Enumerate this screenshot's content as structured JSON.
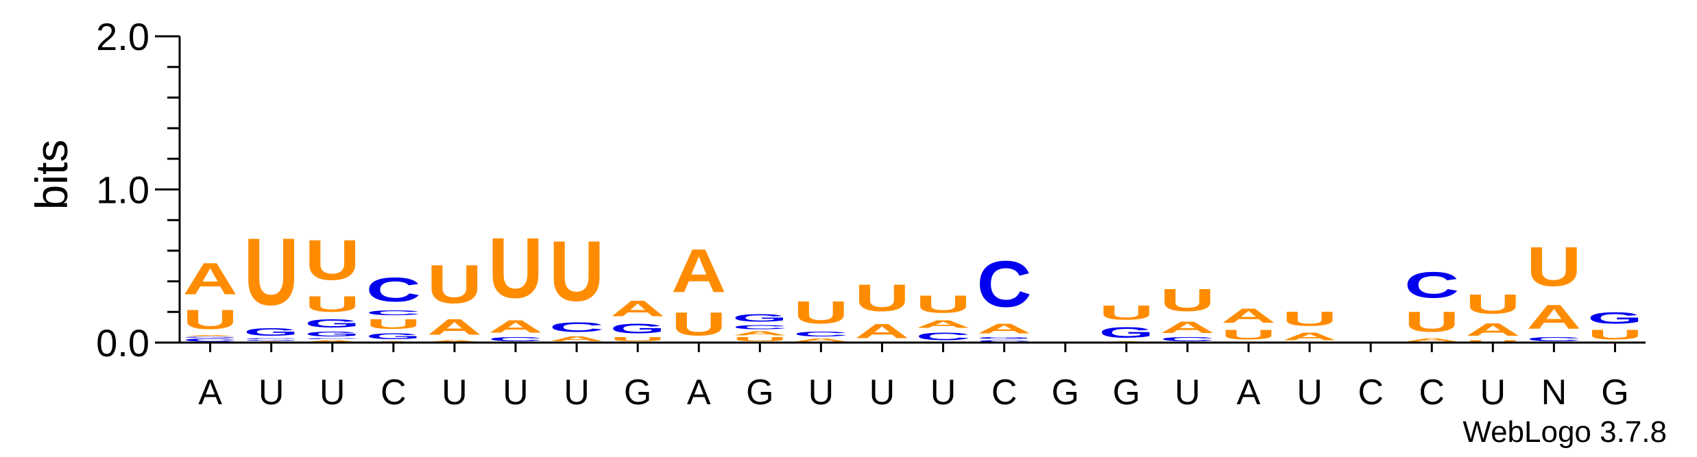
{
  "chart_data": {
    "type": "sequence-logo",
    "ylabel": "bits",
    "ylim": [
      0,
      2.0
    ],
    "yticks": [
      "0.0",
      "1.0",
      "2.0"
    ],
    "consensus": [
      "A",
      "U",
      "U",
      "C",
      "U",
      "U",
      "U",
      "G",
      "A",
      "G",
      "U",
      "U",
      "U",
      "C",
      "G",
      "G",
      "U",
      "A",
      "U",
      "C",
      "C",
      "U",
      "N",
      "G"
    ],
    "colors": {
      "A": "#ff8c00",
      "U": "#ff8c00",
      "C": "#0000ee",
      "G": "#0000ee"
    },
    "positions": [
      [
        [
          "C",
          0.03
        ],
        [
          "G",
          0.01
        ],
        [
          "A",
          0.01
        ],
        [
          "U",
          0.2
        ],
        [
          "A",
          0.33
        ]
      ],
      [
        [
          "A",
          0.01
        ],
        [
          "G",
          0.01
        ],
        [
          "C",
          0.01
        ],
        [
          "G",
          0.08
        ],
        [
          "U",
          0.7
        ]
      ],
      [
        [
          "A",
          0.02
        ],
        [
          "C",
          0.01
        ],
        [
          "G",
          0.05
        ],
        [
          "G",
          0.09
        ],
        [
          "U",
          0.16
        ],
        [
          "U",
          0.42
        ]
      ],
      [
        [
          "A",
          0.01
        ],
        [
          "G",
          0.06
        ],
        [
          "U",
          0.1
        ],
        [
          "C",
          0.05
        ],
        [
          "C",
          0.25
        ]
      ],
      [
        [
          "A",
          0.02
        ],
        [
          "A",
          0.16
        ],
        [
          "U",
          0.4
        ]
      ],
      [
        [
          "C",
          0.04
        ],
        [
          "A",
          0.13
        ],
        [
          "U",
          0.63
        ]
      ],
      [
        [
          "A",
          0.05
        ],
        [
          "C",
          0.1
        ],
        [
          "U",
          0.63
        ]
      ],
      [
        [
          "U",
          0.04
        ],
        [
          "G",
          0.1
        ],
        [
          "A",
          0.16
        ]
      ],
      [
        [
          "U",
          0.24
        ],
        [
          "A",
          0.45
        ]
      ],
      [
        [
          "U",
          0.04
        ],
        [
          "A",
          0.04
        ],
        [
          "C",
          0.04
        ],
        [
          "G",
          0.08
        ]
      ],
      [
        [
          "A",
          0.03
        ],
        [
          "C",
          0.05
        ],
        [
          "U",
          0.23
        ]
      ],
      [
        [
          "A",
          0.15
        ],
        [
          "U",
          0.28
        ]
      ],
      [
        [
          "C",
          0.08
        ],
        [
          "A",
          0.08
        ],
        [
          "U",
          0.18
        ]
      ],
      [
        [
          "C",
          0.02
        ],
        [
          "G",
          0.02
        ],
        [
          "A",
          0.1
        ],
        [
          "C",
          0.48
        ]
      ],
      [],
      [
        [
          "A",
          0.01
        ],
        [
          "G",
          0.11
        ],
        [
          "U",
          0.15
        ]
      ],
      [
        [
          "C",
          0.04
        ],
        [
          "A",
          0.12
        ],
        [
          "U",
          0.23
        ]
      ],
      [
        [
          "U",
          0.1
        ],
        [
          "A",
          0.15
        ]
      ],
      [
        [
          "A",
          0.08
        ],
        [
          "U",
          0.15
        ]
      ],
      [],
      [
        [
          "A",
          0.03
        ],
        [
          "U",
          0.21
        ],
        [
          "C",
          0.27
        ]
      ],
      [
        [
          "U",
          0.02
        ],
        [
          "A",
          0.13
        ],
        [
          "U",
          0.2
        ]
      ],
      [
        [
          "C",
          0.04
        ],
        [
          "A",
          0.25
        ],
        [
          "U",
          0.41
        ]
      ],
      [
        [
          "U",
          0.1
        ],
        [
          "G",
          0.12
        ]
      ]
    ],
    "credit": "WebLogo 3.7.8"
  }
}
